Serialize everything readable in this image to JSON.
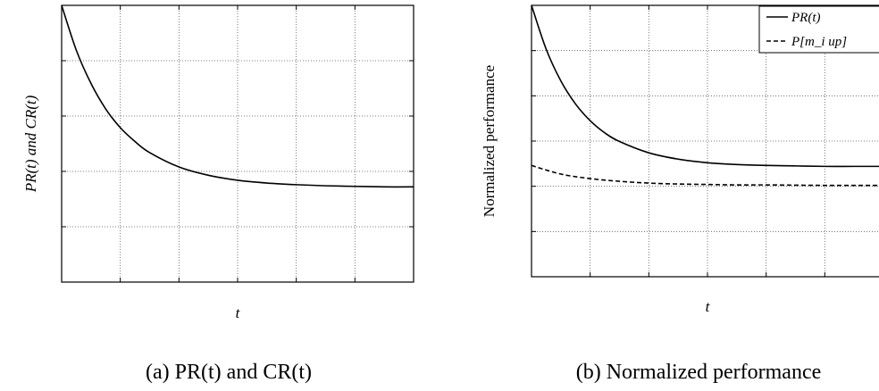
{
  "chart_data": [
    {
      "type": "line",
      "caption": "(a) PR(t) and CR(t)",
      "xlabel": "t",
      "ylabel": "PR(t) and CR(t)",
      "xlim": [
        0,
        6
      ],
      "ylim": [
        0,
        5
      ],
      "grid": true,
      "legend": null,
      "series": [
        {
          "style": "solid",
          "x": [
            0,
            0.25,
            0.5,
            0.75,
            1.0,
            1.25,
            1.5,
            2.0,
            2.5,
            3.0,
            3.5,
            4.0,
            4.5,
            5.0,
            5.5,
            6.0
          ],
          "values": [
            5.0,
            4.19,
            3.59,
            3.13,
            2.79,
            2.54,
            2.34,
            2.08,
            1.93,
            1.84,
            1.79,
            1.76,
            1.74,
            1.73,
            1.72,
            1.72
          ]
        }
      ]
    },
    {
      "type": "line",
      "caption": "(b) Normalized performance",
      "xlabel": "t",
      "ylabel": "Normalized performance",
      "xlim": [
        0,
        6
      ],
      "ylim": [
        0,
        6
      ],
      "grid": true,
      "legend": "top-right",
      "series": [
        {
          "name": "PR(t)",
          "style": "solid",
          "x": [
            0,
            0.25,
            0.5,
            0.75,
            1.0,
            1.25,
            1.5,
            2.0,
            2.5,
            3.0,
            3.5,
            4.0,
            4.5,
            5.0,
            5.5,
            6.0
          ],
          "values": [
            6.0,
            5.03,
            4.33,
            3.82,
            3.45,
            3.18,
            2.99,
            2.74,
            2.6,
            2.52,
            2.48,
            2.46,
            2.45,
            2.44,
            2.44,
            2.44
          ]
        },
        {
          "name": "P[m_i up]",
          "style": "dashed",
          "x": [
            0,
            0.5,
            1.0,
            1.5,
            2.0,
            2.5,
            3.0,
            3.5,
            4.0,
            5.0,
            6.0
          ],
          "values": [
            2.46,
            2.27,
            2.17,
            2.11,
            2.07,
            2.05,
            2.04,
            2.03,
            2.03,
            2.02,
            2.02
          ]
        }
      ]
    }
  ]
}
